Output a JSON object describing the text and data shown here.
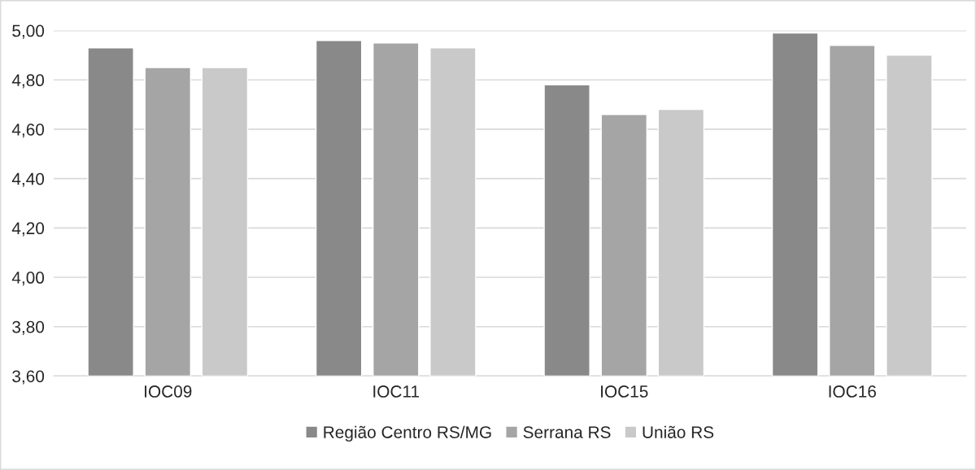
{
  "chart_data": {
    "type": "bar",
    "categories": [
      "IOC09",
      "IOC11",
      "IOC15",
      "IOC16"
    ],
    "series": [
      {
        "name": "Região Centro RS/MG",
        "color": "#898989",
        "values": [
          4.93,
          4.96,
          4.78,
          4.99
        ]
      },
      {
        "name": "Serrana RS",
        "color": "#a5a5a5",
        "values": [
          4.85,
          4.95,
          4.66,
          4.94
        ]
      },
      {
        "name": "União RS",
        "color": "#c9c9c9",
        "values": [
          4.85,
          4.93,
          4.68,
          4.9
        ]
      }
    ],
    "ylim": [
      3.6,
      5.0
    ],
    "yticks": [
      {
        "value": 3.6,
        "label": "3,60"
      },
      {
        "value": 3.8,
        "label": "3,80"
      },
      {
        "value": 4.0,
        "label": "4,00"
      },
      {
        "value": 4.2,
        "label": "4,20"
      },
      {
        "value": 4.4,
        "label": "4,40"
      },
      {
        "value": 4.6,
        "label": "4,60"
      },
      {
        "value": 4.8,
        "label": "4,80"
      },
      {
        "value": 5.0,
        "label": "5,00"
      }
    ],
    "grid": "y",
    "legend": "bottom"
  }
}
